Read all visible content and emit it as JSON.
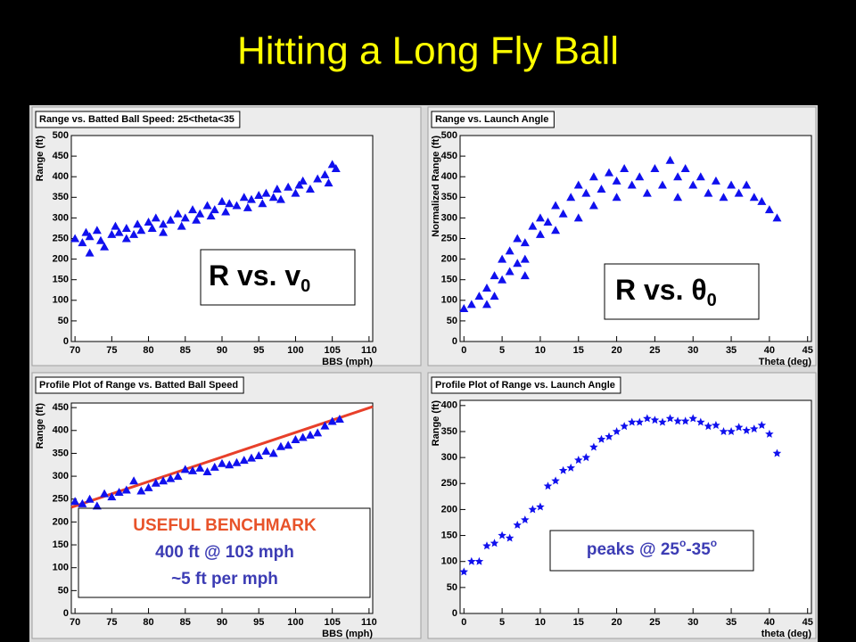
{
  "title": "Hitting a Long Fly Ball",
  "chart_data": [
    {
      "type": "scatter",
      "title": "Range vs. Batted Ball Speed:  25<theta<35",
      "xlabel": "BBS (mph)",
      "ylabel": "Range (ft)",
      "marker": "triangle",
      "color": "#1010ee",
      "x": [
        70,
        71,
        71.5,
        72,
        73,
        73.5,
        74,
        75,
        75.5,
        76,
        77,
        78,
        78.5,
        79,
        80,
        80.5,
        81,
        82,
        83,
        84,
        84.5,
        85,
        86,
        86.5,
        87,
        88,
        88.5,
        89,
        90,
        90.5,
        91,
        92,
        93,
        93.5,
        94,
        95,
        95.5,
        96,
        97,
        97.5,
        98,
        99,
        100,
        100.5,
        101,
        102,
        103,
        104,
        104.5,
        105,
        105.5,
        72,
        77,
        82
      ],
      "y": [
        250,
        240,
        265,
        255,
        270,
        245,
        230,
        260,
        280,
        265,
        275,
        260,
        285,
        270,
        290,
        275,
        300,
        285,
        295,
        310,
        280,
        300,
        320,
        295,
        310,
        330,
        305,
        320,
        340,
        315,
        335,
        330,
        350,
        325,
        345,
        355,
        335,
        360,
        350,
        370,
        345,
        375,
        360,
        380,
        390,
        370,
        395,
        405,
        385,
        430,
        420,
        215,
        250,
        265
      ],
      "xlim": [
        69.5,
        110.5
      ],
      "ylim": [
        0,
        500
      ],
      "xticks": [
        70,
        75,
        80,
        85,
        90,
        95,
        100,
        105,
        110
      ],
      "yticks": [
        0,
        50,
        100,
        150,
        200,
        250,
        300,
        350,
        400,
        450,
        500
      ],
      "annotation": {
        "text": "R vs. v",
        "sub": "0"
      }
    },
    {
      "type": "scatter",
      "title": "Range vs. Launch Angle",
      "xlabel": "Theta (deg)",
      "ylabel": "Normalized Range (ft)",
      "marker": "triangle",
      "color": "#1010ee",
      "x": [
        0,
        1,
        2,
        3,
        4,
        4,
        5,
        5,
        6,
        6,
        7,
        7,
        8,
        8,
        9,
        10,
        10,
        11,
        12,
        12,
        13,
        14,
        15,
        15,
        16,
        17,
        17,
        18,
        19,
        20,
        20,
        21,
        22,
        23,
        24,
        25,
        26,
        27,
        28,
        28,
        29,
        30,
        31,
        32,
        33,
        34,
        35,
        36,
        37,
        38,
        39,
        40,
        41,
        3,
        8
      ],
      "y": [
        80,
        90,
        110,
        130,
        160,
        110,
        200,
        150,
        220,
        170,
        250,
        190,
        240,
        200,
        280,
        260,
        300,
        290,
        330,
        270,
        310,
        350,
        300,
        380,
        360,
        400,
        330,
        370,
        410,
        350,
        390,
        420,
        380,
        400,
        360,
        420,
        380,
        440,
        400,
        350,
        420,
        380,
        400,
        360,
        390,
        350,
        380,
        360,
        380,
        350,
        340,
        320,
        300,
        90,
        160
      ],
      "xlim": [
        -0.5,
        45.5
      ],
      "ylim": [
        0,
        500
      ],
      "xticks": [
        0,
        5,
        10,
        15,
        20,
        25,
        30,
        35,
        40,
        45
      ],
      "yticks": [
        0,
        50,
        100,
        150,
        200,
        250,
        300,
        350,
        400,
        450,
        500
      ],
      "annotation": {
        "text": "R vs. θ",
        "sub": "0"
      }
    },
    {
      "type": "scatter",
      "title": "Profile Plot of Range vs. Batted Ball Speed",
      "xlabel": "BBS (mph)",
      "ylabel": "Range (ft)",
      "marker": "triangle",
      "color": "#1010ee",
      "x": [
        70,
        71,
        72,
        73,
        74,
        75,
        76,
        77,
        78,
        79,
        80,
        81,
        82,
        83,
        84,
        85,
        86,
        87,
        88,
        89,
        90,
        91,
        92,
        93,
        94,
        95,
        96,
        97,
        98,
        99,
        100,
        101,
        102,
        103,
        104,
        105,
        106
      ],
      "y": [
        245,
        240,
        250,
        235,
        262,
        255,
        265,
        270,
        290,
        268,
        275,
        285,
        290,
        295,
        300,
        315,
        312,
        318,
        310,
        320,
        328,
        325,
        330,
        335,
        340,
        345,
        355,
        350,
        365,
        368,
        380,
        385,
        390,
        395,
        410,
        420,
        425
      ],
      "xlim": [
        69.5,
        110.5
      ],
      "ylim": [
        0,
        460
      ],
      "xticks": [
        70,
        75,
        80,
        85,
        90,
        95,
        100,
        105,
        110
      ],
      "yticks": [
        0,
        50,
        100,
        150,
        200,
        250,
        300,
        350,
        400,
        450
      ],
      "fit": {
        "x": [
          69.5,
          110.5
        ],
        "y": [
          232,
          452
        ],
        "color": "#e8402a"
      },
      "annotation_lines": [
        "USEFUL BENCHMARK",
        "400 ft @ 103 mph",
        "~5 ft per mph"
      ],
      "annotation_colors": [
        "#e8532a",
        "#3c3cb4",
        "#3c3cb4"
      ]
    },
    {
      "type": "scatter",
      "title": "Profile Plot of Range vs. Launch Angle",
      "xlabel": "theta (deg)",
      "ylabel": "Range (ft)",
      "marker": "star",
      "color": "#1010ee",
      "x": [
        0,
        1,
        2,
        3,
        4,
        5,
        6,
        7,
        8,
        9,
        10,
        11,
        12,
        13,
        14,
        15,
        16,
        17,
        18,
        19,
        20,
        21,
        22,
        23,
        24,
        25,
        26,
        27,
        28,
        29,
        30,
        31,
        32,
        33,
        34,
        35,
        36,
        37,
        38,
        39,
        40,
        41
      ],
      "y": [
        80,
        100,
        100,
        130,
        135,
        150,
        145,
        170,
        180,
        200,
        205,
        245,
        255,
        275,
        280,
        295,
        300,
        320,
        335,
        340,
        350,
        360,
        368,
        368,
        375,
        372,
        368,
        375,
        370,
        370,
        375,
        368,
        360,
        362,
        350,
        350,
        358,
        352,
        355,
        362,
        345,
        308
      ],
      "xlim": [
        -0.5,
        45.5
      ],
      "ylim": [
        0,
        410
      ],
      "xticks": [
        0,
        5,
        10,
        15,
        20,
        25,
        30,
        35,
        40,
        45
      ],
      "yticks": [
        0,
        50,
        100,
        150,
        200,
        250,
        300,
        350,
        400
      ],
      "annotation": {
        "text": "peaks @ 25",
        "sup": "o",
        "text2": "-35",
        "sup2": "o"
      }
    }
  ]
}
